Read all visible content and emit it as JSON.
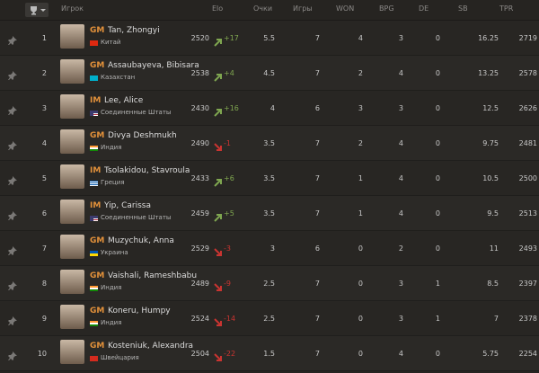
{
  "header": {
    "columns": [
      "Игрок",
      "Elo",
      "Очки",
      "Игры",
      "WON",
      "BPG",
      "DE",
      "SB",
      "TPR"
    ]
  },
  "rows": [
    {
      "rank": "1",
      "title": "GM",
      "name": "Tan, Zhongyi",
      "country": "Китай",
      "elo": "2520",
      "change": "+17",
      "points": "5.5",
      "games": "7",
      "won": "4",
      "bpg": "3",
      "de": "0",
      "sb": "16.25",
      "tpr": "2719"
    },
    {
      "rank": "2",
      "title": "GM",
      "name": "Assaubayeva, Bibisara",
      "country": "Казахстан",
      "elo": "2538",
      "change": "+4",
      "points": "4.5",
      "games": "7",
      "won": "2",
      "bpg": "4",
      "de": "0",
      "sb": "13.25",
      "tpr": "2578"
    },
    {
      "rank": "3",
      "title": "IM",
      "name": "Lee, Alice",
      "country": "Соединенные Штаты",
      "elo": "2430",
      "change": "+16",
      "points": "4",
      "games": "6",
      "won": "3",
      "bpg": "3",
      "de": "0",
      "sb": "12.5",
      "tpr": "2626"
    },
    {
      "rank": "4",
      "title": "GM",
      "name": "Divya Deshmukh",
      "country": "Индия",
      "elo": "2490",
      "change": "-1",
      "points": "3.5",
      "games": "7",
      "won": "2",
      "bpg": "4",
      "de": "0",
      "sb": "9.75",
      "tpr": "2481"
    },
    {
      "rank": "5",
      "title": "IM",
      "name": "Tsolakidou, Stavroula",
      "country": "Греция",
      "elo": "2433",
      "change": "+6",
      "points": "3.5",
      "games": "7",
      "won": "1",
      "bpg": "4",
      "de": "0",
      "sb": "10.5",
      "tpr": "2500"
    },
    {
      "rank": "6",
      "title": "IM",
      "name": "Yip, Carissa",
      "country": "Соединенные Штаты",
      "elo": "2459",
      "change": "+5",
      "points": "3.5",
      "games": "7",
      "won": "1",
      "bpg": "4",
      "de": "0",
      "sb": "9.5",
      "tpr": "2513"
    },
    {
      "rank": "7",
      "title": "GM",
      "name": "Muzychuk, Anna",
      "country": "Украина",
      "elo": "2529",
      "change": "-3",
      "points": "3",
      "games": "6",
      "won": "0",
      "bpg": "2",
      "de": "0",
      "sb": "11",
      "tpr": "2493"
    },
    {
      "rank": "8",
      "title": "GM",
      "name": "Vaishali, Rameshbabu",
      "country": "Индия",
      "elo": "2489",
      "change": "-9",
      "points": "2.5",
      "games": "7",
      "won": "0",
      "bpg": "3",
      "de": "1",
      "sb": "8.5",
      "tpr": "2397"
    },
    {
      "rank": "9",
      "title": "GM",
      "name": "Koneru, Humpy",
      "country": "Индия",
      "elo": "2524",
      "change": "-14",
      "points": "2.5",
      "games": "7",
      "won": "0",
      "bpg": "3",
      "de": "1",
      "sb": "7",
      "tpr": "2378"
    },
    {
      "rank": "10",
      "title": "GM",
      "name": "Kosteniuk, Alexandra",
      "country": "Швейцария",
      "elo": "2504",
      "change": "-22",
      "points": "1.5",
      "games": "7",
      "won": "0",
      "bpg": "4",
      "de": "0",
      "sb": "5.75",
      "tpr": "2254"
    }
  ]
}
